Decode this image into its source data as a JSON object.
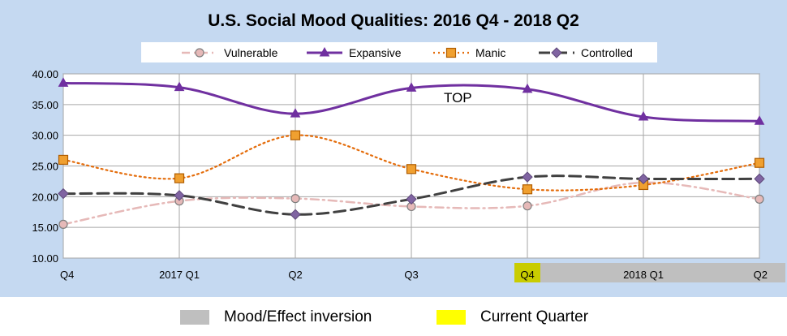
{
  "colors": {
    "panel_background": "#c5d9f1",
    "plot_background": "#ffffff",
    "inversion_band": "#bfbfbf",
    "current_quarter": "#ffff00",
    "current_quarter_tick_highlight": "#c9cc00"
  },
  "bottom_legend": {
    "inversion_label": "Mood/Effect inversion",
    "current_label": "Current Quarter"
  },
  "chart_data": {
    "type": "line",
    "title": "U.S. Social Mood Qualities:  2016 Q4 - 2018 Q2",
    "categories": [
      "Q4",
      "2017 Q1",
      "Q2",
      "Q3",
      "Q4",
      "2018 Q1",
      "Q2"
    ],
    "ylim": [
      10,
      40
    ],
    "yticks": [
      "10.00",
      "15.00",
      "20.00",
      "25.00",
      "30.00",
      "35.00",
      "40.00"
    ],
    "grid": true,
    "legend_position": "top",
    "annotation": "TOP",
    "annotation_category": "Q3",
    "annotation_value": 36.2,
    "inversion_band_categories": [
      "Q4",
      "Q2"
    ],
    "current_quarter_category": "Q4",
    "series": [
      {
        "name": "Vulnerable",
        "color": "#e6b9b8",
        "marker": "circle",
        "marker_fill": "#e6b9b8",
        "marker_stroke": "#7f7f7f",
        "dash": "dashdot",
        "values": [
          15.5,
          19.3,
          19.7,
          18.4,
          18.5,
          22.3,
          19.6
        ]
      },
      {
        "name": "Expansive",
        "color": "#7030a0",
        "marker": "triangle",
        "marker_fill": "#7030a0",
        "marker_stroke": "#7030a0",
        "dash": "solid",
        "values": [
          38.5,
          37.8,
          33.5,
          37.7,
          37.5,
          33.0,
          32.3
        ]
      },
      {
        "name": "Manic",
        "color": "#e46c0a",
        "marker": "square",
        "marker_fill": "#f0a030",
        "marker_stroke": "#b05d00",
        "dash": "dotted",
        "values": [
          26.0,
          23.0,
          30.0,
          24.5,
          21.2,
          21.9,
          25.5
        ]
      },
      {
        "name": "Controlled",
        "color": "#404040",
        "marker": "diamond",
        "marker_fill": "#8064a2",
        "marker_stroke": "#5f497a",
        "dash": "dashed",
        "values": [
          20.5,
          20.2,
          17.1,
          19.6,
          23.2,
          22.9,
          22.9
        ]
      }
    ]
  }
}
